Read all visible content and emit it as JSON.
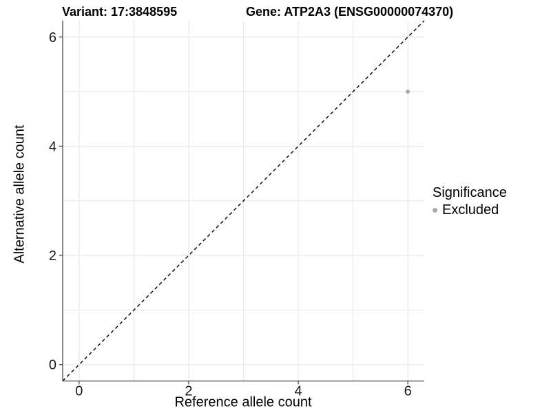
{
  "chart_data": {
    "type": "scatter",
    "title_variant": "Variant: 17:3848595",
    "title_gene": "Gene: ATP2A3 (ENSG00000074370)",
    "xlabel": "Reference allele count",
    "ylabel": "Alternative allele count",
    "xlim": [
      -0.3,
      6.3
    ],
    "ylim": [
      -0.3,
      6.3
    ],
    "x_ticks": [
      0,
      2,
      4,
      6
    ],
    "y_ticks": [
      0,
      2,
      4,
      6
    ],
    "x_minor_gridlines": [
      1,
      3,
      5
    ],
    "y_minor_gridlines": [
      1,
      3,
      5
    ],
    "grid": true,
    "identity_line": {
      "style": "dashed",
      "from": [
        -0.3,
        -0.3
      ],
      "to": [
        6.3,
        6.3
      ],
      "color": "#000000"
    },
    "points": [
      {
        "x": 6,
        "y": 5,
        "significance": "Excluded",
        "color": "#aaaaaa",
        "radius": 3
      }
    ],
    "legend": {
      "title": "Significance",
      "position": "right",
      "entries": [
        {
          "label": "Excluded",
          "color": "#aaaaaa"
        }
      ]
    },
    "colors": {
      "background": "#ffffff",
      "grid": "#e5e5e5",
      "axis": "#404040",
      "tick_text": "#1a1a1a"
    }
  }
}
